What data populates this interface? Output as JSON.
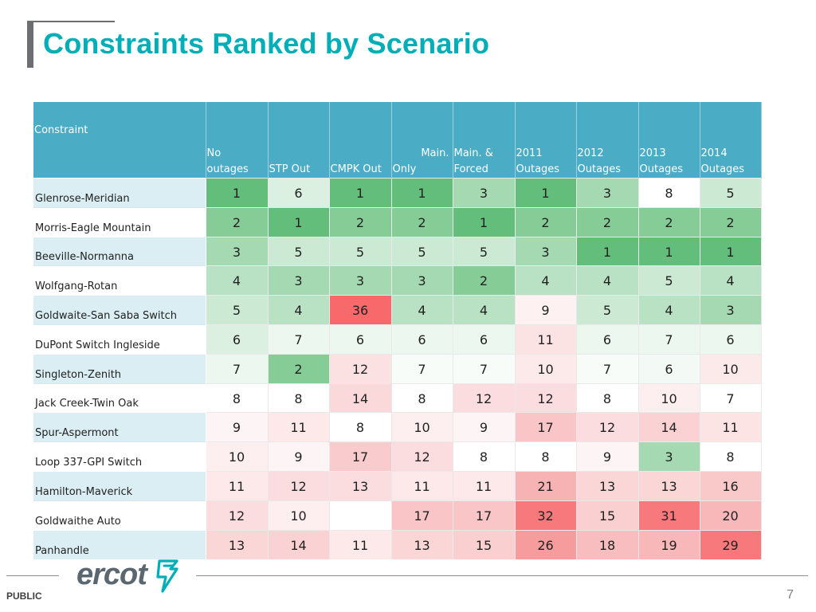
{
  "title": "Constraints Ranked by Scenario",
  "header": {
    "constraint": "Constraint",
    "columns": [
      {
        "line1": "No",
        "line2": "outages"
      },
      {
        "line1": "",
        "line2": "STP Out"
      },
      {
        "line1": "",
        "line2": "CMPK Out"
      },
      {
        "line1": "Main.",
        "line2": "Only"
      },
      {
        "line1": "Main. &",
        "line2": "Forced"
      },
      {
        "line1": "2011",
        "line2": "Outages"
      },
      {
        "line1": "2012",
        "line2": "Outages"
      },
      {
        "line1": "2013",
        "line2": "Outages"
      },
      {
        "line1": "2014",
        "line2": "Outages"
      }
    ]
  },
  "rows": [
    {
      "name": "Glenrose-Meridian",
      "values": [
        "1",
        "6",
        "1",
        "1",
        "3",
        "1",
        "3",
        "8",
        "5"
      ],
      "colors": [
        "#63be7b",
        "#dcf0e1",
        "#63be7b",
        "#63be7b",
        "#a5d9b2",
        "#63be7b",
        "#a5d9b2",
        "#ffffff",
        "#cbe9d3"
      ]
    },
    {
      "name": "Morris-Eagle Mountain",
      "values": [
        "2",
        "1",
        "2",
        "2",
        "1",
        "2",
        "2",
        "2",
        "2"
      ],
      "colors": [
        "#85cc97",
        "#63be7b",
        "#85cc97",
        "#85cc97",
        "#63be7b",
        "#85cc97",
        "#85cc97",
        "#85cc97",
        "#85cc97"
      ]
    },
    {
      "name": "Beeville-Normanna",
      "values": [
        "3",
        "5",
        "5",
        "5",
        "5",
        "3",
        "1",
        "1",
        "1"
      ],
      "colors": [
        "#a5d9b2",
        "#cbe9d3",
        "#cbe9d3",
        "#cbe9d3",
        "#cbe9d3",
        "#a5d9b2",
        "#63be7b",
        "#63be7b",
        "#63be7b"
      ]
    },
    {
      "name": "Wolfgang-Rotan",
      "values": [
        "4",
        "3",
        "3",
        "3",
        "2",
        "4",
        "4",
        "5",
        "4"
      ],
      "colors": [
        "#b9e1c3",
        "#a5d9b2",
        "#a5d9b2",
        "#a5d9b2",
        "#85cc97",
        "#b9e1c3",
        "#b9e1c3",
        "#cbe9d3",
        "#b9e1c3"
      ]
    },
    {
      "name": "Goldwaite-San Saba Switch",
      "values": [
        "5",
        "4",
        "36",
        "4",
        "4",
        "9",
        "5",
        "4",
        "3"
      ],
      "colors": [
        "#cbe9d3",
        "#b9e1c3",
        "#f8696b",
        "#b9e1c3",
        "#b9e1c3",
        "#fdf1f2",
        "#cbe9d3",
        "#b9e1c3",
        "#a5d9b2"
      ]
    },
    {
      "name": "DuPont Switch Ingleside",
      "values": [
        "6",
        "7",
        "6",
        "6",
        "6",
        "11",
        "6",
        "7",
        "6"
      ],
      "colors": [
        "#dcf0e1",
        "#ecf7ef",
        "#ecf7ef",
        "#ecf7ef",
        "#ecf7ef",
        "#fbe3e4",
        "#ecf7ef",
        "#ecf7ef",
        "#ecf7ef"
      ]
    },
    {
      "name": "Singleton-Zenith",
      "values": [
        "7",
        "2",
        "12",
        "7",
        "7",
        "10",
        "7",
        "6",
        "10"
      ],
      "colors": [
        "#ecf7ef",
        "#85cc97",
        "#fbe1e2",
        "#f8fcf9",
        "#f8fcf9",
        "#fce9ea",
        "#f8fcf9",
        "#f3faf5",
        "#fce9ea"
      ]
    },
    {
      "name": "Jack Creek-Twin Oak",
      "values": [
        "8",
        "8",
        "14",
        "8",
        "12",
        "12",
        "8",
        "10",
        "7"
      ],
      "colors": [
        "#ffffff",
        "#ffffff",
        "#fbd9da",
        "#ffffff",
        "#fbdddf",
        "#fbdddf",
        "#ffffff",
        "#fdeeef",
        "#ffffff"
      ]
    },
    {
      "name": "Spur-Aspermont",
      "values": [
        "9",
        "11",
        "8",
        "10",
        "9",
        "17",
        "12",
        "14",
        "11"
      ],
      "colors": [
        "#fdf4f5",
        "#fde9ea",
        "#ffffff",
        "#fdeeef",
        "#fdf4f5",
        "#f9c5c6",
        "#fbdddf",
        "#fad2d3",
        "#fce4e5"
      ]
    },
    {
      "name": "Loop 337-GPI Switch",
      "values": [
        "10",
        "9",
        "17",
        "12",
        "8",
        "8",
        "9",
        "3",
        "8"
      ],
      "colors": [
        "#fdeeef",
        "#fdf4f5",
        "#f9cbcc",
        "#fbdddf",
        "#ffffff",
        "#ffffff",
        "#fdf4f5",
        "#a5d9b2",
        "#ffffff"
      ]
    },
    {
      "name": "Hamilton-Maverick",
      "values": [
        "11",
        "12",
        "13",
        "11",
        "11",
        "21",
        "13",
        "13",
        "16"
      ],
      "colors": [
        "#fde9ea",
        "#fbdddf",
        "#fbdddf",
        "#fde9ea",
        "#fde9ea",
        "#f7b2b3",
        "#fad6d7",
        "#fad6d7",
        "#f9c9ca"
      ]
    },
    {
      "name": "Goldwaithe Auto",
      "values": [
        "12",
        "10",
        "",
        "17",
        "17",
        "32",
        "15",
        "31",
        "20"
      ],
      "colors": [
        "#fbdddf",
        "#fdeeef",
        "#ffffff",
        "#f9c5c6",
        "#f9c5c6",
        "#f7797b",
        "#facfd0",
        "#f7797b",
        "#f8b8b9"
      ]
    },
    {
      "name": "Panhandle",
      "values": [
        "13",
        "14",
        "11",
        "13",
        "15",
        "26",
        "18",
        "19",
        "29"
      ],
      "colors": [
        "#fad6d7",
        "#fad2d3",
        "#fde9ea",
        "#fad6d7",
        "#facfd0",
        "#f79c9d",
        "#f8bdbe",
        "#f8b8b9",
        "#f8797b"
      ]
    }
  ],
  "footer": {
    "logo_text": "ercot",
    "classification": "PUBLIC",
    "page_number": "7"
  },
  "colors": {
    "title": "#00aeb8",
    "header_bg": "#4bacc6",
    "name_col_bg": "#daeef3",
    "logo": "#5b6770",
    "logo_accent": "#00aeb8"
  }
}
